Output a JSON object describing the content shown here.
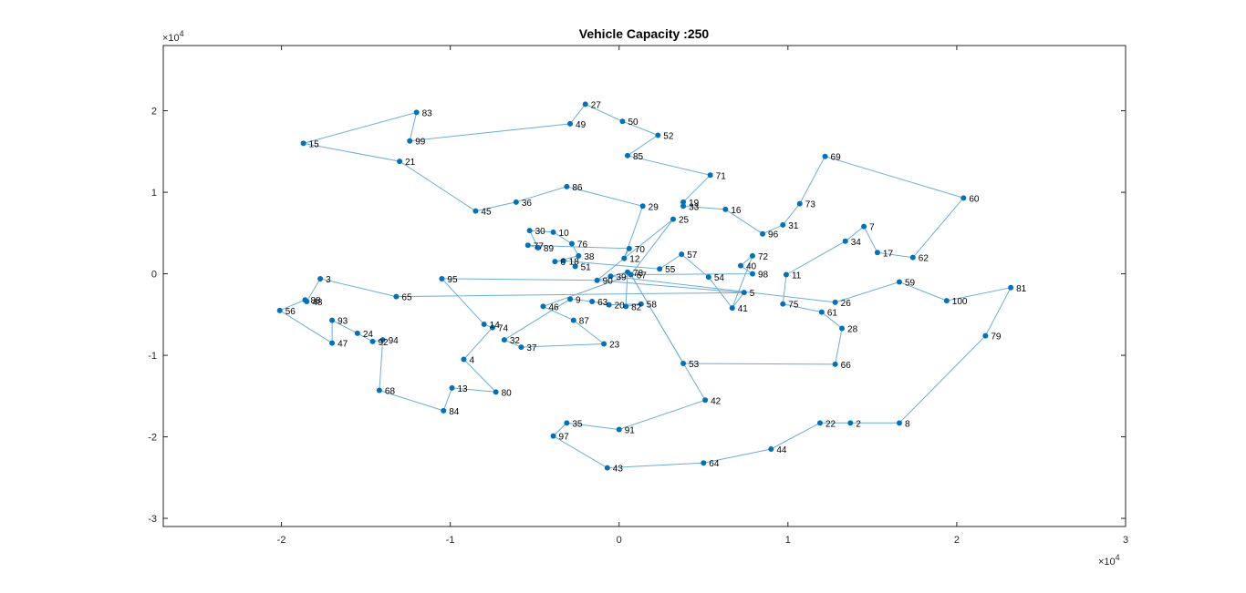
{
  "chart_data": {
    "type": "line",
    "title": "Vehicle Capacity :250",
    "xlabel": "",
    "ylabel": "",
    "x_scale_label": "×10",
    "x_scale_exp": "4",
    "y_scale_label": "×10",
    "y_scale_exp": "4",
    "xlim": [
      -2.7,
      3.0
    ],
    "ylim": [
      -3.1,
      2.8
    ],
    "xticks": [
      -2,
      -1,
      0,
      1,
      2,
      3
    ],
    "yticks": [
      -3,
      -2,
      -1,
      0,
      1,
      2
    ],
    "grid": false,
    "line_color": "#6baed6",
    "marker_color": "#0072bd",
    "nodes": [
      {
        "id": "2",
        "x": 1.37,
        "y": -1.83
      },
      {
        "id": "3",
        "x": -1.77,
        "y": -0.06
      },
      {
        "id": "4",
        "x": -0.92,
        "y": -1.05
      },
      {
        "id": "5",
        "x": 0.74,
        "y": -0.23
      },
      {
        "id": "6",
        "x": -0.38,
        "y": 0.15
      },
      {
        "id": "7",
        "x": 1.45,
        "y": 0.58
      },
      {
        "id": "8",
        "x": 1.66,
        "y": -1.83
      },
      {
        "id": "9",
        "x": -0.29,
        "y": -0.31
      },
      {
        "id": "10",
        "x": -0.39,
        "y": 0.51
      },
      {
        "id": "11",
        "x": 0.99,
        "y": -0.01
      },
      {
        "id": "12",
        "x": 0.03,
        "y": 0.19
      },
      {
        "id": "13",
        "x": -0.99,
        "y": -1.4
      },
      {
        "id": "14",
        "x": -0.8,
        "y": -0.62
      },
      {
        "id": "15",
        "x": -1.87,
        "y": 1.6
      },
      {
        "id": "16",
        "x": 0.63,
        "y": 0.79
      },
      {
        "id": "17",
        "x": 1.53,
        "y": 0.26
      },
      {
        "id": "18",
        "x": -0.33,
        "y": 0.16
      },
      {
        "id": "19",
        "x": 0.38,
        "y": 0.88
      },
      {
        "id": "20",
        "x": -0.06,
        "y": -0.38
      },
      {
        "id": "21",
        "x": -1.3,
        "y": 1.38
      },
      {
        "id": "22",
        "x": 1.19,
        "y": -1.83
      },
      {
        "id": "23",
        "x": -0.09,
        "y": -0.86
      },
      {
        "id": "24",
        "x": -1.55,
        "y": -0.73
      },
      {
        "id": "25",
        "x": 0.32,
        "y": 0.67
      },
      {
        "id": "26",
        "x": 1.28,
        "y": -0.35
      },
      {
        "id": "27",
        "x": -0.2,
        "y": 2.08
      },
      {
        "id": "28",
        "x": 1.32,
        "y": -0.67
      },
      {
        "id": "29",
        "x": 0.14,
        "y": 0.83
      },
      {
        "id": "30",
        "x": -0.53,
        "y": 0.53
      },
      {
        "id": "31",
        "x": 0.97,
        "y": 0.6
      },
      {
        "id": "32",
        "x": -0.68,
        "y": -0.81
      },
      {
        "id": "33",
        "x": 0.38,
        "y": 0.83
      },
      {
        "id": "34",
        "x": 1.34,
        "y": 0.4
      },
      {
        "id": "35",
        "x": -0.31,
        "y": -1.83
      },
      {
        "id": "36",
        "x": -0.61,
        "y": 0.88
      },
      {
        "id": "37",
        "x": -0.58,
        "y": -0.9
      },
      {
        "id": "38",
        "x": -0.24,
        "y": 0.22
      },
      {
        "id": "39",
        "x": -0.05,
        "y": -0.03
      },
      {
        "id": "40",
        "x": 0.72,
        "y": 0.1
      },
      {
        "id": "41",
        "x": 0.67,
        "y": -0.42
      },
      {
        "id": "42",
        "x": 0.51,
        "y": -1.55
      },
      {
        "id": "43",
        "x": -0.07,
        "y": -2.38
      },
      {
        "id": "44",
        "x": 0.9,
        "y": -2.15
      },
      {
        "id": "45",
        "x": -0.85,
        "y": 0.77
      },
      {
        "id": "46",
        "x": -0.45,
        "y": -0.4
      },
      {
        "id": "47",
        "x": -1.7,
        "y": -0.85
      },
      {
        "id": "48",
        "x": -1.85,
        "y": -0.34
      },
      {
        "id": "49",
        "x": -0.29,
        "y": 1.84
      },
      {
        "id": "50",
        "x": 0.02,
        "y": 1.87
      },
      {
        "id": "51",
        "x": -0.26,
        "y": 0.09
      },
      {
        "id": "52",
        "x": 0.23,
        "y": 1.7
      },
      {
        "id": "53",
        "x": 0.38,
        "y": -1.1
      },
      {
        "id": "54",
        "x": 0.53,
        "y": -0.04
      },
      {
        "id": "55",
        "x": 0.24,
        "y": 0.06
      },
      {
        "id": "56",
        "x": -2.01,
        "y": -0.45
      },
      {
        "id": "57",
        "x": 0.37,
        "y": 0.24
      },
      {
        "id": "58",
        "x": 0.13,
        "y": -0.37
      },
      {
        "id": "59",
        "x": 1.66,
        "y": -0.1
      },
      {
        "id": "60",
        "x": 2.04,
        "y": 0.93
      },
      {
        "id": "61",
        "x": 1.2,
        "y": -0.47
      },
      {
        "id": "62",
        "x": 1.74,
        "y": 0.2
      },
      {
        "id": "63",
        "x": -0.16,
        "y": -0.34
      },
      {
        "id": "64",
        "x": 0.5,
        "y": -2.32
      },
      {
        "id": "65",
        "x": -1.32,
        "y": -0.28
      },
      {
        "id": "66",
        "x": 1.28,
        "y": -1.11
      },
      {
        "id": "67",
        "x": 0.07,
        "y": -0.01
      },
      {
        "id": "68",
        "x": -1.42,
        "y": -1.43
      },
      {
        "id": "69",
        "x": 1.22,
        "y": 1.44
      },
      {
        "id": "70",
        "x": 0.06,
        "y": 0.31
      },
      {
        "id": "71",
        "x": 0.54,
        "y": 1.21
      },
      {
        "id": "72",
        "x": 0.79,
        "y": 0.22
      },
      {
        "id": "73",
        "x": 1.07,
        "y": 0.86
      },
      {
        "id": "74",
        "x": -0.75,
        "y": -0.66
      },
      {
        "id": "75",
        "x": 0.97,
        "y": -0.37
      },
      {
        "id": "76",
        "x": -0.28,
        "y": 0.37
      },
      {
        "id": "77",
        "x": -0.54,
        "y": 0.35
      },
      {
        "id": "78",
        "x": 0.05,
        "y": 0.02
      },
      {
        "id": "79",
        "x": 2.17,
        "y": -0.76
      },
      {
        "id": "80",
        "x": -0.73,
        "y": -1.45
      },
      {
        "id": "81",
        "x": 2.32,
        "y": -0.17
      },
      {
        "id": "82",
        "x": 0.04,
        "y": -0.4
      },
      {
        "id": "83",
        "x": -1.2,
        "y": 1.98
      },
      {
        "id": "84",
        "x": -1.04,
        "y": -1.68
      },
      {
        "id": "85",
        "x": 0.05,
        "y": 1.45
      },
      {
        "id": "86",
        "x": -0.31,
        "y": 1.07
      },
      {
        "id": "87",
        "x": -0.27,
        "y": -0.57
      },
      {
        "id": "88",
        "x": -1.86,
        "y": -0.32
      },
      {
        "id": "89",
        "x": -0.48,
        "y": 0.32
      },
      {
        "id": "90",
        "x": -0.13,
        "y": -0.08
      },
      {
        "id": "91",
        "x": 0.0,
        "y": -1.91
      },
      {
        "id": "92",
        "x": -1.46,
        "y": -0.83
      },
      {
        "id": "93",
        "x": -1.7,
        "y": -0.57
      },
      {
        "id": "94",
        "x": -1.4,
        "y": -0.81
      },
      {
        "id": "95",
        "x": -1.05,
        "y": -0.06
      },
      {
        "id": "96",
        "x": 0.85,
        "y": 0.49
      },
      {
        "id": "97",
        "x": -0.39,
        "y": -1.99
      },
      {
        "id": "98",
        "x": 0.79,
        "y": 0.0
      },
      {
        "id": "99",
        "x": -1.24,
        "y": 1.63
      },
      {
        "id": "100",
        "x": 1.94,
        "y": -0.33
      }
    ],
    "routes": [
      [
        "45",
        "36",
        "86",
        "29",
        "12",
        "90",
        "39",
        "78",
        "82",
        "58",
        "20",
        "63",
        "9",
        "32",
        "37",
        "23",
        "87",
        "46",
        "67",
        "53",
        "66",
        "28",
        "61",
        "75",
        "11",
        "34",
        "7",
        "17",
        "62",
        "60",
        "69",
        "73",
        "31",
        "96",
        "16",
        "33",
        "19",
        "71",
        "85",
        "52",
        "50",
        "27",
        "49",
        "99",
        "83",
        "15",
        "21",
        "45"
      ],
      [
        "95",
        "14",
        "74",
        "4",
        "80",
        "13",
        "84",
        "68",
        "94",
        "92",
        "24",
        "93",
        "47",
        "56",
        "88",
        "48",
        "3",
        "65",
        "5",
        "41",
        "54",
        "57",
        "55",
        "18",
        "6",
        "38",
        "76",
        "10",
        "30",
        "89",
        "77",
        "70",
        "12",
        "25",
        "67",
        "78",
        "39",
        "26",
        "59",
        "100",
        "81",
        "79",
        "8",
        "2",
        "22",
        "44",
        "64",
        "43",
        "97",
        "35",
        "91",
        "42",
        "67",
        "98",
        "40",
        "72",
        "41",
        "5",
        "90",
        "95"
      ]
    ]
  }
}
